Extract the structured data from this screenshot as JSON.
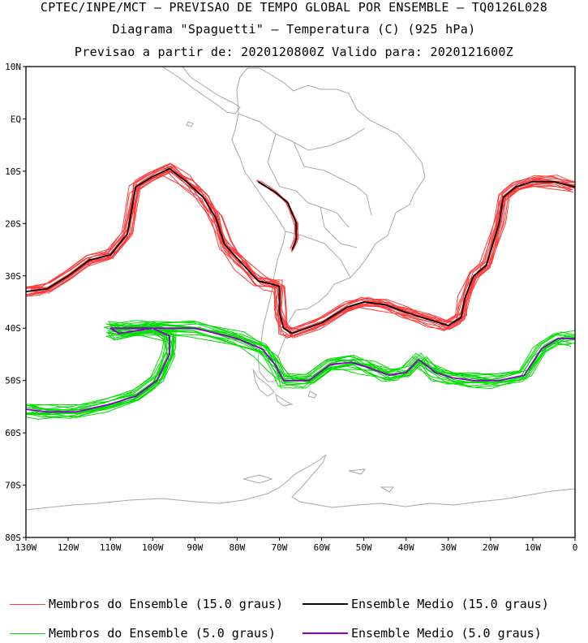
{
  "header": {
    "line1": "CPTEC/INPE/MCT – PREVISAO DE TEMPO GLOBAL POR ENSEMBLE – TQ0126L028",
    "line2": "Diagrama \"Spaguetti\" – Temperatura (C) (925 hPa)",
    "line3": "Previsao a partir de: 2020120800Z  Valido para: 2020121600Z"
  },
  "axes": {
    "lat_labels": [
      "10N",
      "EQ",
      "10S",
      "20S",
      "30S",
      "40S",
      "50S",
      "60S",
      "70S",
      "80S"
    ],
    "lat_values": [
      10,
      0,
      -10,
      -20,
      -30,
      -40,
      -50,
      -60,
      -70,
      -80
    ],
    "lon_labels": [
      "130W",
      "120W",
      "110W",
      "100W",
      "90W",
      "80W",
      "70W",
      "60W",
      "50W",
      "40W",
      "30W",
      "20W",
      "10W",
      "0"
    ],
    "lon_values": [
      -130,
      -120,
      -110,
      -100,
      -90,
      -80,
      -70,
      -60,
      -50,
      -40,
      -30,
      -20,
      -10,
      0
    ],
    "lon_range": [
      -130,
      0
    ],
    "lat_range": [
      -80,
      10
    ]
  },
  "colors": {
    "members_15": "#ff3b3b",
    "mean_15": "#000000",
    "members_5": "#00dd00",
    "mean_5": "#8a00c8",
    "coast": "#a8a8a8"
  },
  "legend": {
    "members_15": "Membros do Ensemble (15.0 graus)",
    "mean_15": "Ensemble Medio (15.0 graus)",
    "members_5": "Membros do Ensemble (5.0 graus)",
    "mean_5": "Ensemble Medio (5.0 graus)"
  },
  "contours": {
    "mean_15": [
      [
        -130,
        -33
      ],
      [
        -125,
        -32.5
      ],
      [
        -120,
        -30
      ],
      [
        -115,
        -27
      ],
      [
        -110,
        -26
      ],
      [
        -106,
        -22
      ],
      [
        -104,
        -13
      ],
      [
        -100,
        -11
      ],
      [
        -96,
        -9.5
      ],
      [
        -92,
        -12
      ],
      [
        -88,
        -15
      ],
      [
        -85,
        -19
      ],
      [
        -83,
        -24
      ],
      [
        -79,
        -27.5
      ],
      [
        -75,
        -31
      ],
      [
        -72,
        -31.5
      ],
      [
        -70,
        -32
      ],
      [
        -70,
        -37
      ],
      [
        -69,
        -40
      ],
      [
        -67,
        -41
      ],
      [
        -60,
        -39
      ],
      [
        -54,
        -36
      ],
      [
        -50,
        -35
      ],
      [
        -45,
        -35.5
      ],
      [
        -40,
        -37
      ],
      [
        -34,
        -38.5
      ],
      [
        -30,
        -39.5
      ],
      [
        -27,
        -38
      ],
      [
        -26,
        -34
      ],
      [
        -24,
        -30
      ],
      [
        -21,
        -28
      ],
      [
        -18,
        -20
      ],
      [
        -17,
        -15
      ],
      [
        -14,
        -13
      ],
      [
        -10,
        -12
      ],
      [
        -5,
        -12
      ],
      [
        0,
        -13
      ]
    ],
    "mean_15_peru": [
      [
        -75,
        -12
      ],
      [
        -71,
        -14
      ],
      [
        -68,
        -16
      ],
      [
        -66,
        -20
      ],
      [
        -66,
        -23
      ],
      [
        -67,
        -25
      ]
    ],
    "mean_5": [
      [
        -130,
        -55.5
      ],
      [
        -125,
        -56
      ],
      [
        -118,
        -56
      ],
      [
        -110,
        -54.5
      ],
      [
        -104,
        -53
      ],
      [
        -99,
        -50
      ],
      [
        -96,
        -45
      ],
      [
        -96,
        -41.5
      ],
      [
        -100,
        -40
      ],
      [
        -105,
        -40
      ],
      [
        -110,
        -40
      ],
      [
        -108,
        -41
      ],
      [
        -100,
        -40
      ],
      [
        -90,
        -40
      ],
      [
        -80,
        -42
      ],
      [
        -74,
        -44
      ],
      [
        -71,
        -47
      ],
      [
        -69,
        -50
      ],
      [
        -63,
        -50
      ],
      [
        -58,
        -47
      ],
      [
        -53,
        -46.5
      ],
      [
        -49,
        -47.5
      ],
      [
        -44,
        -49
      ],
      [
        -40,
        -48.5
      ],
      [
        -37,
        -46
      ],
      [
        -33,
        -48.5
      ],
      [
        -29,
        -49.5
      ],
      [
        -24,
        -50
      ],
      [
        -18,
        -50
      ],
      [
        -12,
        -49
      ],
      [
        -8,
        -44
      ],
      [
        -4,
        -42
      ],
      [
        0,
        -42
      ]
    ]
  }
}
